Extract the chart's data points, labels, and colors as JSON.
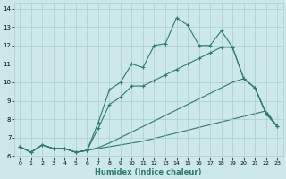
{
  "xlabel": "Humidex (Indice chaleur)",
  "line_color": "#2d7a6e",
  "bg_color": "#cce8ea",
  "grid_color": "#aaccce",
  "xlim": [
    -0.5,
    23.5
  ],
  "ylim": [
    5.9,
    14.3
  ],
  "xticks": [
    0,
    1,
    2,
    3,
    4,
    5,
    6,
    7,
    8,
    9,
    10,
    11,
    12,
    13,
    14,
    15,
    16,
    17,
    18,
    19,
    20,
    21,
    22,
    23
  ],
  "yticks": [
    6,
    7,
    8,
    9,
    10,
    11,
    12,
    13,
    14
  ],
  "line1_x": [
    0,
    1,
    2,
    3,
    4,
    5,
    6,
    7,
    8,
    9,
    10,
    11,
    12,
    13,
    14,
    15,
    16,
    17,
    18,
    19,
    20,
    21,
    22,
    23
  ],
  "line1_y": [
    6.5,
    6.2,
    6.6,
    6.4,
    6.4,
    6.2,
    6.3,
    7.8,
    9.6,
    10.0,
    11.0,
    10.8,
    12.0,
    12.1,
    13.5,
    13.1,
    12.0,
    12.0,
    12.8,
    11.9,
    10.2,
    9.7,
    8.3,
    7.6
  ],
  "line2_x": [
    0,
    1,
    2,
    3,
    4,
    5,
    6,
    7,
    8,
    9,
    10,
    11,
    12,
    13,
    14,
    15,
    16,
    17,
    18,
    19,
    20,
    21,
    22,
    23
  ],
  "line2_y": [
    6.5,
    6.2,
    6.6,
    6.4,
    6.4,
    6.2,
    6.3,
    7.5,
    8.8,
    9.2,
    9.8,
    9.8,
    10.1,
    10.4,
    10.7,
    11.0,
    11.3,
    11.6,
    11.9,
    11.9,
    10.2,
    9.7,
    8.3,
    7.6
  ],
  "line3_x": [
    0,
    1,
    2,
    3,
    4,
    5,
    6,
    7,
    8,
    9,
    10,
    11,
    12,
    13,
    14,
    15,
    16,
    17,
    18,
    19,
    20,
    21,
    22,
    23
  ],
  "line3_y": [
    6.5,
    6.2,
    6.6,
    6.4,
    6.4,
    6.2,
    6.3,
    6.45,
    6.7,
    7.0,
    7.3,
    7.6,
    7.9,
    8.2,
    8.5,
    8.8,
    9.1,
    9.4,
    9.7,
    10.0,
    10.2,
    9.7,
    8.3,
    7.6
  ],
  "line4_x": [
    0,
    1,
    2,
    3,
    4,
    5,
    6,
    7,
    8,
    9,
    10,
    11,
    12,
    13,
    14,
    15,
    16,
    17,
    18,
    19,
    20,
    21,
    22,
    23
  ],
  "line4_y": [
    6.5,
    6.2,
    6.6,
    6.4,
    6.4,
    6.2,
    6.3,
    6.4,
    6.5,
    6.6,
    6.7,
    6.8,
    6.95,
    7.1,
    7.25,
    7.4,
    7.55,
    7.7,
    7.85,
    8.0,
    8.15,
    8.3,
    8.45,
    7.6
  ]
}
